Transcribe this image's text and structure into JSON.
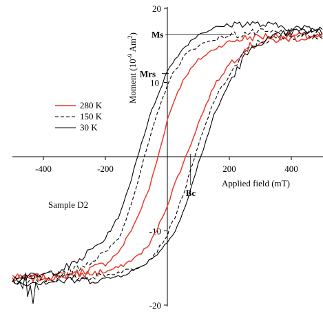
{
  "chart_data": {
    "type": "line",
    "title": "",
    "xlabel": "Applied field (mT)",
    "ylabel": {
      "pre": "Moment (10",
      "exp": "-9",
      "mid": " Am",
      "sup": "2",
      "post": ")"
    },
    "xlim": [
      -500,
      500
    ],
    "ylim": [
      -20,
      20
    ],
    "x_ticks": [
      -400,
      -200,
      200,
      400
    ],
    "y_ticks": [
      -20,
      -10,
      10,
      20
    ],
    "grid": false,
    "legend_position": "left",
    "annotations": {
      "ms": {
        "label": "Ms",
        "y": 16.5
      },
      "mrs": {
        "label": "Mrs",
        "y": 11.2
      },
      "bc": {
        "label": "Bc",
        "x": 75
      },
      "sample": "Sample D2"
    },
    "series": [
      {
        "name": "280 K",
        "color": "#e8392b",
        "dash": "solid",
        "x": [
          -500,
          -400,
          -300,
          -200,
          -150,
          -100,
          -60,
          -30,
          0,
          30,
          60,
          100,
          150,
          200,
          250,
          300,
          400,
          500
        ],
        "y_upper": [
          -16.5,
          -16.3,
          -15.8,
          -14.5,
          -12.5,
          -8.5,
          -4.5,
          0,
          5,
          8.5,
          11,
          13,
          14.5,
          15.5,
          16,
          16.2,
          16.3,
          16.2
        ],
        "y_lower": [
          -16.3,
          -16.2,
          -16.0,
          -15.5,
          -14.8,
          -13.5,
          -12.0,
          -9.5,
          -6.5,
          -3,
          0,
          4.5,
          9.5,
          12.5,
          14.5,
          15.5,
          16.0,
          16.1
        ]
      },
      {
        "name": "150 K",
        "color": "#000000",
        "dash": "dashed",
        "x": [
          -500,
          -400,
          -300,
          -200,
          -150,
          -100,
          -60,
          -30,
          0,
          30,
          60,
          100,
          150,
          200,
          250,
          300,
          400,
          500
        ],
        "y_upper": [
          -16.5,
          -16.2,
          -15.2,
          -13,
          -10.5,
          -4,
          2,
          6,
          9.8,
          12,
          13.8,
          15,
          15.8,
          16.3,
          16.6,
          16.7,
          16.7,
          16.5
        ],
        "y_lower": [
          -16.6,
          -16.5,
          -16.3,
          -16.0,
          -15.5,
          -15.0,
          -14.0,
          -12.5,
          -10.5,
          -7.5,
          -4,
          1.5,
          7.5,
          11,
          14,
          15.5,
          16.3,
          16.4
        ]
      },
      {
        "name": "30 K",
        "color": "#000000",
        "dash": "solid",
        "x": [
          -500,
          -400,
          -300,
          -200,
          -150,
          -120,
          -90,
          -60,
          -30,
          0,
          30,
          60,
          100,
          150,
          200,
          250,
          300,
          400,
          500
        ],
        "y_upper": [
          -16.5,
          -16.0,
          -14.5,
          -11,
          -7.5,
          -3.5,
          1,
          5,
          8.5,
          11.5,
          13.5,
          15,
          16.5,
          17.3,
          17.8,
          18,
          17.8,
          17.4,
          17
        ],
        "y_lower": [
          -17,
          -16.8,
          -16.7,
          -16.5,
          -16.0,
          -15.5,
          -15.0,
          -14.0,
          -13.0,
          -11.5,
          -9.5,
          -6.5,
          -1,
          5.5,
          10,
          13.5,
          15.5,
          16.8,
          17
        ]
      }
    ]
  }
}
